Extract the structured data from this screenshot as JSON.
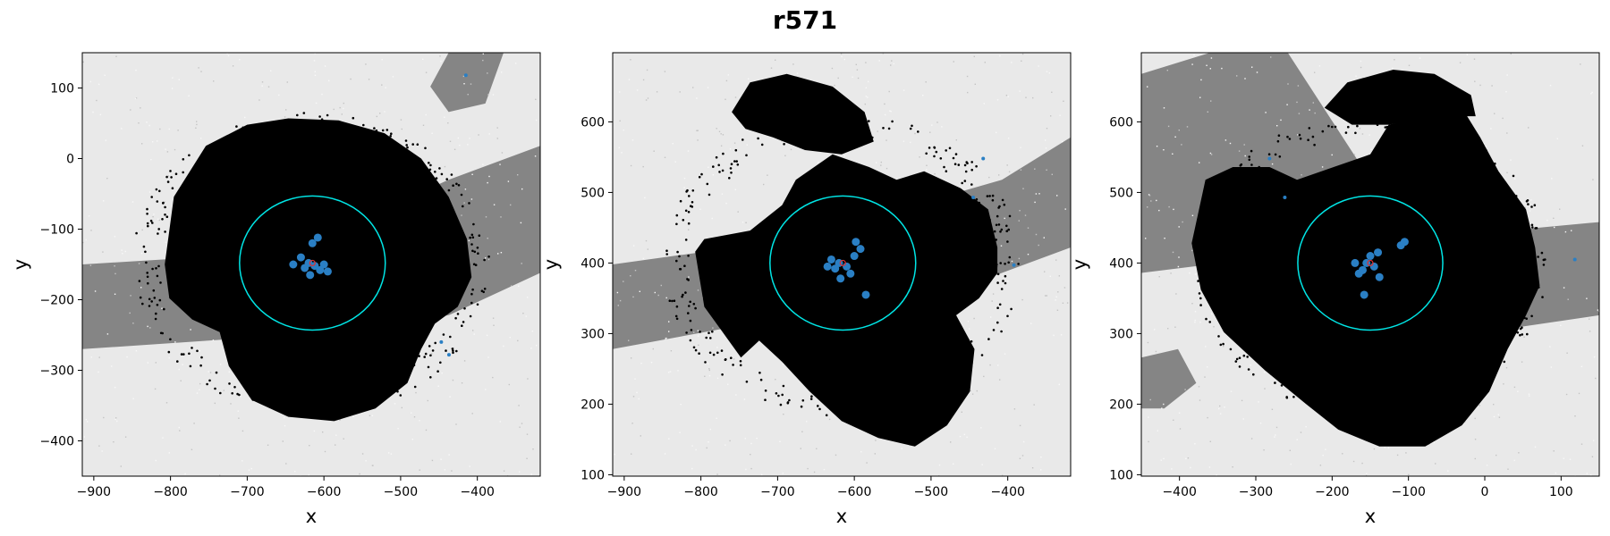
{
  "title": "r571",
  "colors": {
    "background_light": "#e9e9e9",
    "background_band": "#858585",
    "particles": "#000000",
    "cluster": "#2a7fc4",
    "circle": "#00e5e5",
    "center_marker": "#e03030"
  },
  "chart_data": [
    {
      "type": "scatter",
      "title": "",
      "xlabel": "x",
      "ylabel": "y",
      "xlim": [
        -915,
        -318
      ],
      "ylim": [
        -450,
        150
      ],
      "xticks": [
        -900,
        -800,
        -700,
        -600,
        -500,
        -400
      ],
      "yticks": [
        100,
        0,
        -100,
        -200,
        -300,
        -400
      ],
      "circle": {
        "center": [
          -615,
          -148
        ],
        "radius": 95
      },
      "center_marker": [
        -615,
        -148
      ],
      "cluster_points": [
        [
          -620,
          -148
        ],
        [
          -612,
          -152
        ],
        [
          -605,
          -158
        ],
        [
          -625,
          -155
        ],
        [
          -630,
          -140
        ],
        [
          -600,
          -150
        ],
        [
          -618,
          -165
        ],
        [
          -608,
          -112
        ],
        [
          -615,
          -120
        ],
        [
          -640,
          -150
        ],
        [
          -595,
          -160
        ]
      ],
      "outlier_points": [
        [
          -415,
          118
        ],
        [
          -447,
          -260
        ],
        [
          -437,
          -278
        ]
      ]
    },
    {
      "type": "scatter",
      "title": "",
      "xlabel": "x",
      "ylabel": "y",
      "xlim": [
        -915,
        -318
      ],
      "ylim": [
        98,
        698
      ],
      "xticks": [
        -900,
        -800,
        -700,
        -600,
        -500,
        -400
      ],
      "yticks": [
        600,
        500,
        400,
        300,
        200,
        100
      ],
      "circle": {
        "center": [
          -615,
          400
        ],
        "radius": 95
      },
      "center_marker": [
        -615,
        400
      ],
      "cluster_points": [
        [
          -620,
          400
        ],
        [
          -610,
          395
        ],
        [
          -605,
          385
        ],
        [
          -625,
          392
        ],
        [
          -600,
          410
        ],
        [
          -618,
          378
        ],
        [
          -592,
          420
        ],
        [
          -598,
          430
        ],
        [
          -630,
          405
        ],
        [
          -635,
          395
        ],
        [
          -585,
          355
        ]
      ],
      "outlier_points": [
        [
          -432,
          548
        ],
        [
          -445,
          493
        ],
        [
          -392,
          397
        ]
      ]
    },
    {
      "type": "scatter",
      "title": "",
      "xlabel": "x",
      "ylabel": "y",
      "xlim": [
        -450,
        150
      ],
      "ylim": [
        98,
        698
      ],
      "xticks": [
        -400,
        -300,
        -200,
        -100,
        0,
        100
      ],
      "yticks": [
        600,
        500,
        400,
        300,
        200,
        100
      ],
      "circle": {
        "center": [
          -150,
          400
        ],
        "radius": 95
      },
      "center_marker": [
        -150,
        400
      ],
      "cluster_points": [
        [
          -155,
          400
        ],
        [
          -145,
          395
        ],
        [
          -160,
          390
        ],
        [
          -150,
          410
        ],
        [
          -140,
          415
        ],
        [
          -165,
          385
        ],
        [
          -105,
          430
        ],
        [
          -110,
          425
        ],
        [
          -170,
          400
        ],
        [
          -138,
          380
        ],
        [
          -158,
          355
        ]
      ],
      "outlier_points": [
        [
          -282,
          548
        ],
        [
          -262,
          493
        ],
        [
          118,
          405
        ]
      ]
    }
  ]
}
